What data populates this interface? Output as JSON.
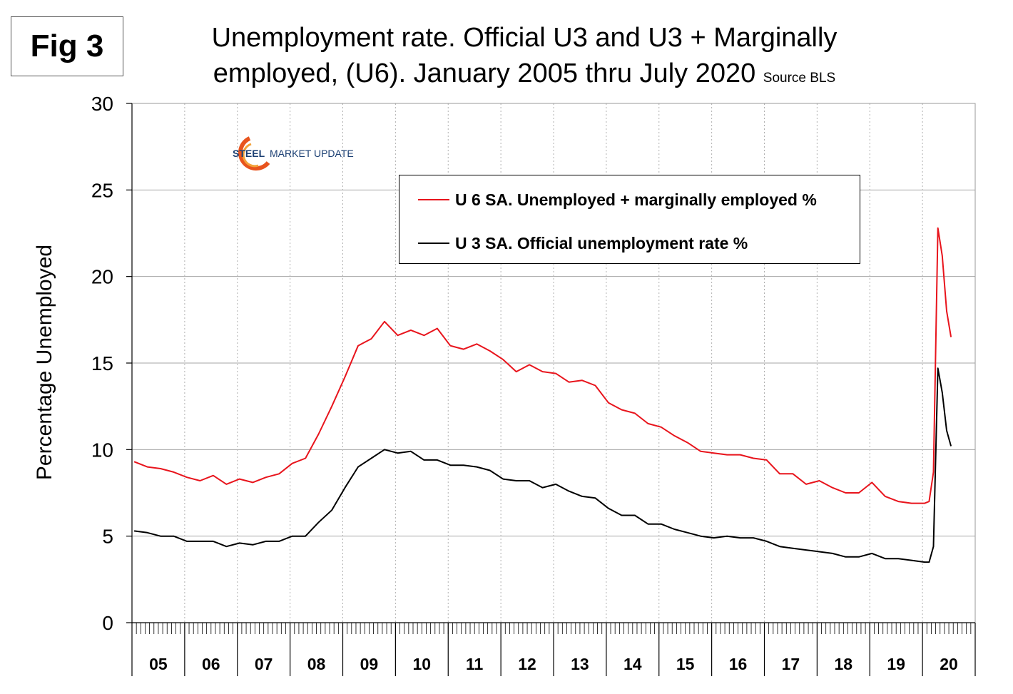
{
  "figure_label": "Fig 3",
  "title": {
    "main": "Unemployment rate. Official U3 and U3 + Marginally employed, (U6). January 2005 thru July 2020",
    "source": "Source BLS"
  },
  "logo": {
    "text_bold": "STEEL",
    "text_rest": "MARKET UPDATE",
    "accent_color": "#e8541e",
    "text_color": "#1b3f73"
  },
  "chart_data": {
    "type": "line",
    "ylabel": "Percentage Unemployed",
    "xlabel": "",
    "ylim": [
      0,
      30
    ],
    "yticks": [
      0,
      5,
      10,
      15,
      20,
      25,
      30
    ],
    "xlim": [
      "2005-01",
      "2020-12"
    ],
    "x_tick_labels": [
      "05",
      "06",
      "07",
      "08",
      "09",
      "10",
      "11",
      "12",
      "13",
      "14",
      "15",
      "16",
      "17",
      "18",
      "19",
      "20"
    ],
    "grid": true,
    "legend_position": "top-center",
    "series": [
      {
        "name": "U 6 SA. Unemployed + marginally employed %",
        "color": "#e8141c",
        "x": [
          "2005-01",
          "2005-04",
          "2005-07",
          "2005-10",
          "2006-01",
          "2006-04",
          "2006-07",
          "2006-10",
          "2007-01",
          "2007-04",
          "2007-07",
          "2007-10",
          "2008-01",
          "2008-04",
          "2008-07",
          "2008-10",
          "2009-01",
          "2009-04",
          "2009-07",
          "2009-10",
          "2010-01",
          "2010-04",
          "2010-07",
          "2010-10",
          "2011-01",
          "2011-04",
          "2011-07",
          "2011-10",
          "2012-01",
          "2012-04",
          "2012-07",
          "2012-10",
          "2013-01",
          "2013-04",
          "2013-07",
          "2013-10",
          "2014-01",
          "2014-04",
          "2014-07",
          "2014-10",
          "2015-01",
          "2015-04",
          "2015-07",
          "2015-10",
          "2016-01",
          "2016-04",
          "2016-07",
          "2016-10",
          "2017-01",
          "2017-04",
          "2017-07",
          "2017-10",
          "2018-01",
          "2018-04",
          "2018-07",
          "2018-10",
          "2019-01",
          "2019-04",
          "2019-07",
          "2019-10",
          "2020-01",
          "2020-02",
          "2020-03",
          "2020-04",
          "2020-05",
          "2020-06",
          "2020-07"
        ],
        "values": [
          9.3,
          9.0,
          8.9,
          8.7,
          8.4,
          8.2,
          8.5,
          8.0,
          8.3,
          8.1,
          8.4,
          8.6,
          9.2,
          9.5,
          10.9,
          12.5,
          14.2,
          16.0,
          16.4,
          17.4,
          16.6,
          16.9,
          16.6,
          17.0,
          16.0,
          15.8,
          16.1,
          15.7,
          15.2,
          14.5,
          14.9,
          14.5,
          14.4,
          13.9,
          14.0,
          13.7,
          12.7,
          12.3,
          12.1,
          11.5,
          11.3,
          10.8,
          10.4,
          9.9,
          9.8,
          9.7,
          9.7,
          9.5,
          9.4,
          8.6,
          8.6,
          8.0,
          8.2,
          7.8,
          7.5,
          7.5,
          8.1,
          7.3,
          7.0,
          6.9,
          6.9,
          7.0,
          8.7,
          22.8,
          21.2,
          18.0,
          16.5
        ]
      },
      {
        "name": "U 3 SA. Official unemployment rate %",
        "color": "#000000",
        "x": [
          "2005-01",
          "2005-04",
          "2005-07",
          "2005-10",
          "2006-01",
          "2006-04",
          "2006-07",
          "2006-10",
          "2007-01",
          "2007-04",
          "2007-07",
          "2007-10",
          "2008-01",
          "2008-04",
          "2008-07",
          "2008-10",
          "2009-01",
          "2009-04",
          "2009-07",
          "2009-10",
          "2010-01",
          "2010-04",
          "2010-07",
          "2010-10",
          "2011-01",
          "2011-04",
          "2011-07",
          "2011-10",
          "2012-01",
          "2012-04",
          "2012-07",
          "2012-10",
          "2013-01",
          "2013-04",
          "2013-07",
          "2013-10",
          "2014-01",
          "2014-04",
          "2014-07",
          "2014-10",
          "2015-01",
          "2015-04",
          "2015-07",
          "2015-10",
          "2016-01",
          "2016-04",
          "2016-07",
          "2016-10",
          "2017-01",
          "2017-04",
          "2017-07",
          "2017-10",
          "2018-01",
          "2018-04",
          "2018-07",
          "2018-10",
          "2019-01",
          "2019-04",
          "2019-07",
          "2019-10",
          "2020-01",
          "2020-02",
          "2020-03",
          "2020-04",
          "2020-05",
          "2020-06",
          "2020-07"
        ],
        "values": [
          5.3,
          5.2,
          5.0,
          5.0,
          4.7,
          4.7,
          4.7,
          4.4,
          4.6,
          4.5,
          4.7,
          4.7,
          5.0,
          5.0,
          5.8,
          6.5,
          7.8,
          9.0,
          9.5,
          10.0,
          9.8,
          9.9,
          9.4,
          9.4,
          9.1,
          9.1,
          9.0,
          8.8,
          8.3,
          8.2,
          8.2,
          7.8,
          8.0,
          7.6,
          7.3,
          7.2,
          6.6,
          6.2,
          6.2,
          5.7,
          5.7,
          5.4,
          5.2,
          5.0,
          4.9,
          5.0,
          4.9,
          4.9,
          4.7,
          4.4,
          4.3,
          4.2,
          4.1,
          4.0,
          3.8,
          3.8,
          4.0,
          3.7,
          3.7,
          3.6,
          3.5,
          3.5,
          4.4,
          14.7,
          13.3,
          11.1,
          10.2
        ]
      }
    ]
  }
}
